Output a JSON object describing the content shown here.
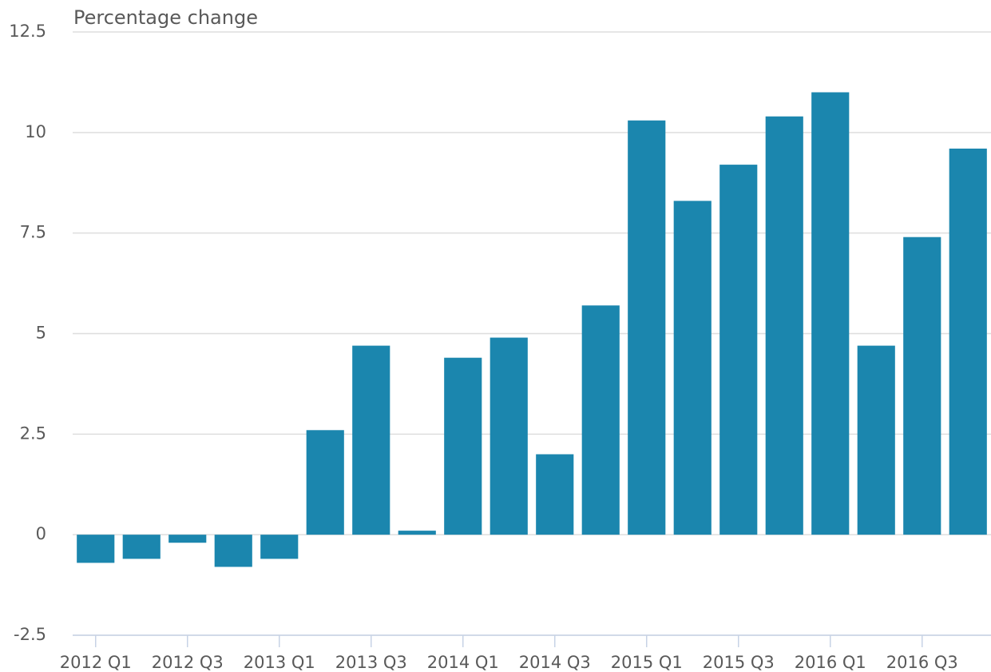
{
  "chart_data": {
    "type": "bar",
    "y_label": "Percentage change",
    "categories": [
      "2012 Q1",
      null,
      "2012 Q3",
      null,
      "2013 Q1",
      null,
      "2013 Q3",
      null,
      "2014 Q1",
      null,
      "2014 Q3",
      null,
      "2015 Q1",
      null,
      "2015 Q3",
      null,
      "2016 Q1",
      null,
      "2016 Q3",
      null
    ],
    "values": [
      -0.7,
      -0.6,
      -0.2,
      -0.8,
      -0.6,
      2.6,
      4.7,
      0.1,
      4.4,
      4.9,
      2.0,
      5.7,
      10.3,
      8.3,
      9.2,
      10.4,
      11.0,
      4.7,
      7.4,
      9.6
    ],
    "color": "#1b86ae",
    "ylim": [
      -2.5,
      12.5
    ],
    "yticks": [
      -2.5,
      0,
      2.5,
      5,
      7.5,
      10,
      12.5
    ],
    "grid": true
  }
}
